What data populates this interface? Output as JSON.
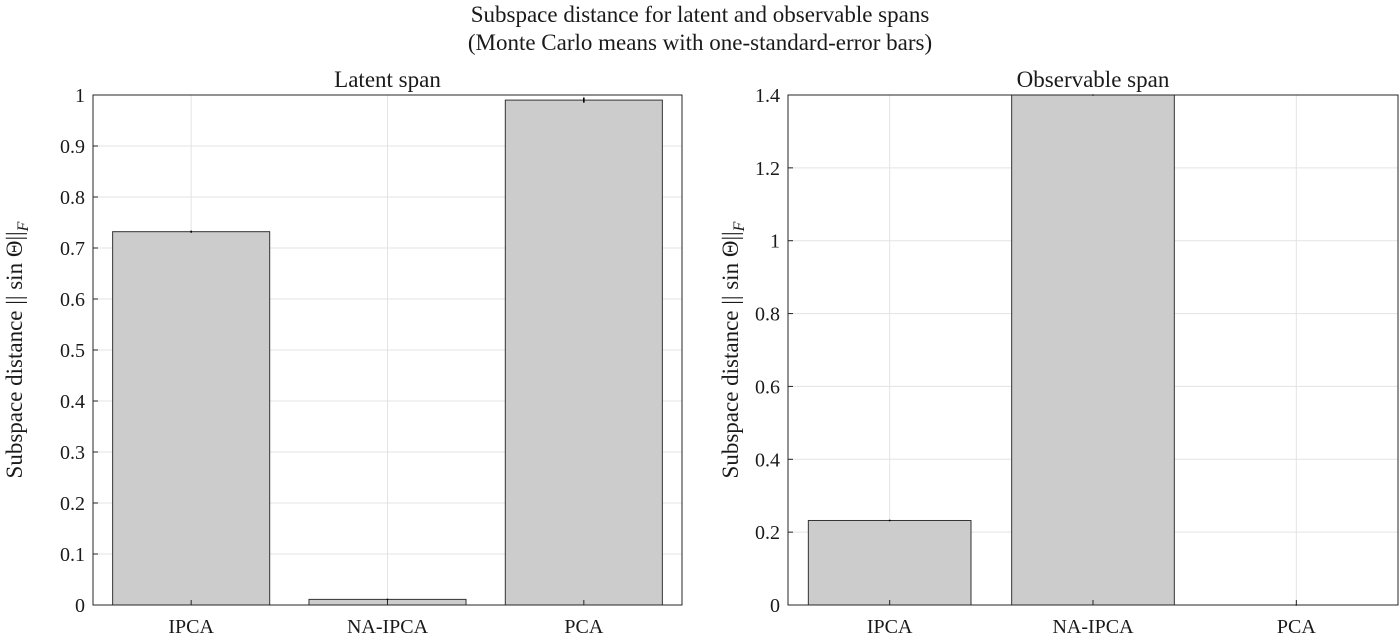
{
  "figure": {
    "title_line1": "Subspace distance for latent and observable spans",
    "title_line2": "(Monte Carlo means with one-standard-error bars)"
  },
  "colors": {
    "bar_fill": "#cccccc",
    "bar_edge": "#333333",
    "error_bar": "#000000",
    "grid": "#e3e3e3"
  },
  "chart_data": [
    {
      "type": "bar",
      "title": "Latent span",
      "xlabel": "",
      "ylabel": "Subspace distance || sin Θ||_F",
      "ylabel_parts": {
        "main": "Subspace distance || sin ",
        "theta": "Θ",
        "bars": "||",
        "sub": "F"
      },
      "categories": [
        "IPCA",
        "NA-IPCA",
        "PCA"
      ],
      "values": [
        0.732,
        0.011,
        0.99
      ],
      "error": [
        0.002,
        0.001,
        0.005
      ],
      "ylim": [
        0,
        1
      ],
      "yticks": [
        0,
        0.1,
        0.2,
        0.3,
        0.4,
        0.5,
        0.6,
        0.7,
        0.8,
        0.9,
        1
      ],
      "ytick_labels": [
        "0",
        "0.1",
        "0.2",
        "0.3",
        "0.4",
        "0.5",
        "0.6",
        "0.7",
        "0.8",
        "0.9",
        "1"
      ],
      "grid": true
    },
    {
      "type": "bar",
      "title": "Observable span",
      "xlabel": "",
      "ylabel": "Subspace distance || sin Θ||_F",
      "ylabel_parts": {
        "main": "Subspace distance || sin ",
        "theta": "Θ",
        "bars": "||",
        "sub": "F"
      },
      "categories": [
        "IPCA",
        "NA-IPCA",
        "PCA"
      ],
      "values": [
        0.232,
        1.4,
        0.0
      ],
      "error": [
        0.002,
        0.001,
        0.0
      ],
      "ylim": [
        0,
        1.4
      ],
      "yticks": [
        0,
        0.2,
        0.4,
        0.6,
        0.8,
        1,
        1.2,
        1.4
      ],
      "ytick_labels": [
        "0",
        "0.2",
        "0.4",
        "0.6",
        "0.8",
        "1",
        "1.2",
        "1.4"
      ],
      "grid": true
    }
  ]
}
